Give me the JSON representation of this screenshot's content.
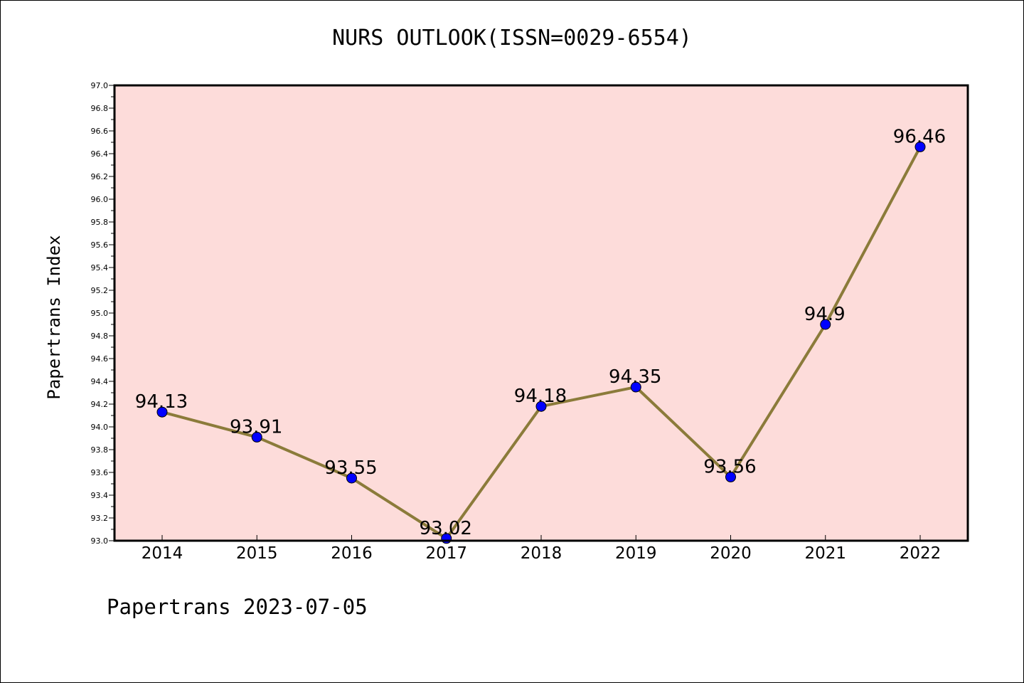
{
  "chart_data": {
    "type": "line",
    "title": "NURS OUTLOOK(ISSN=0029-6554)",
    "xlabel": "",
    "ylabel": "Papertrans Index",
    "categories": [
      "2014",
      "2015",
      "2016",
      "2017",
      "2018",
      "2019",
      "2020",
      "2021",
      "2022"
    ],
    "series": [
      {
        "values": [
          94.13,
          93.91,
          93.55,
          93.02,
          94.18,
          94.35,
          93.56,
          94.9,
          96.46
        ],
        "labels": [
          "94.13",
          "93.91",
          "93.55",
          "93.02",
          "94.18",
          "94.35",
          "93.56",
          "94.9",
          "96.46"
        ]
      }
    ],
    "ylim": [
      93.0,
      97.0
    ],
    "yticks": [
      "93.0",
      "93.2",
      "93.4",
      "93.6",
      "93.8",
      "94.0",
      "94.2",
      "94.4",
      "94.6",
      "94.8",
      "95.0",
      "95.2",
      "95.4",
      "95.6",
      "95.8",
      "96.0",
      "96.2",
      "96.4",
      "96.6",
      "96.8",
      "97.0"
    ],
    "grid": false,
    "colors": {
      "plot_background": "#fddcda",
      "line": "#8b7b3a",
      "marker": "#0000ff"
    }
  },
  "footer": "Papertrans 2023-07-05"
}
